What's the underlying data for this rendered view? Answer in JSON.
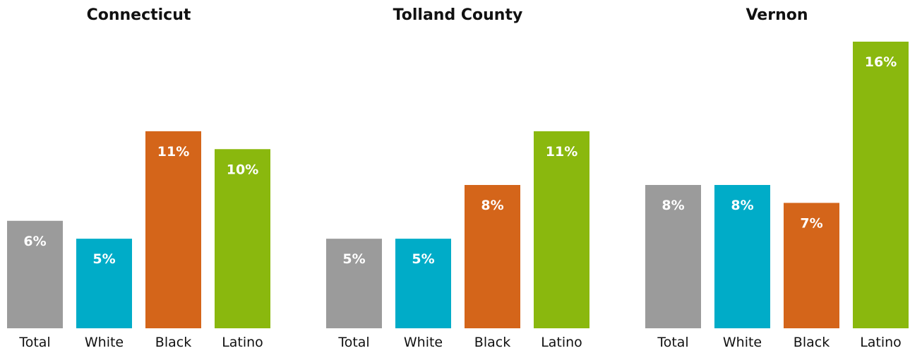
{
  "chart_data": [
    {
      "type": "bar",
      "title": "Connecticut",
      "categories": [
        "Total",
        "White",
        "Black",
        "Latino"
      ],
      "values": [
        6,
        5,
        11,
        10
      ],
      "value_labels": [
        "6%",
        "5%",
        "11%",
        "10%"
      ],
      "colors": [
        "#9b9b9b",
        "#00acc8",
        "#d4651a",
        "#8ab80e"
      ],
      "ylim": [
        0,
        16
      ]
    },
    {
      "type": "bar",
      "title": "Tolland County",
      "categories": [
        "Total",
        "White",
        "Black",
        "Latino"
      ],
      "values": [
        5,
        5,
        8,
        11
      ],
      "value_labels": [
        "5%",
        "5%",
        "8%",
        "11%"
      ],
      "colors": [
        "#9b9b9b",
        "#00acc8",
        "#d4651a",
        "#8ab80e"
      ],
      "ylim": [
        0,
        16
      ]
    },
    {
      "type": "bar",
      "title": "Vernon",
      "categories": [
        "Total",
        "White",
        "Black",
        "Latino"
      ],
      "values": [
        8,
        8,
        7,
        16
      ],
      "value_labels": [
        "8%",
        "8%",
        "7%",
        "16%"
      ],
      "colors": [
        "#9b9b9b",
        "#00acc8",
        "#d4651a",
        "#8ab80e"
      ],
      "ylim": [
        0,
        16
      ]
    }
  ]
}
